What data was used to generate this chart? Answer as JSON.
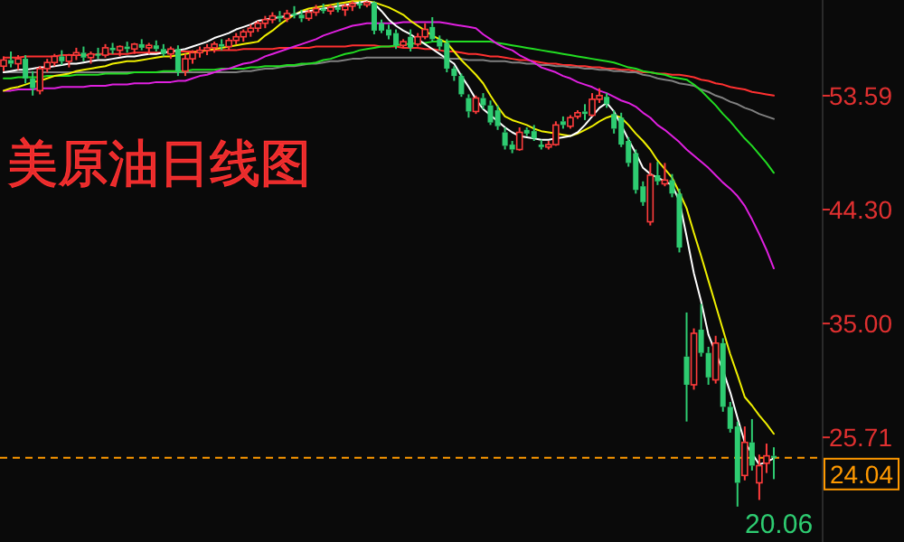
{
  "chart_data": {
    "type": "candlestick",
    "title": "美原油日线图",
    "tick_labels": "y",
    "categories": [
      null,
      null,
      null,
      null,
      null,
      null,
      null,
      null,
      null,
      null,
      null,
      null,
      null,
      null,
      null,
      null,
      null,
      null,
      null,
      null,
      null,
      null,
      null,
      null,
      null,
      null,
      null,
      null,
      null,
      null,
      null,
      null,
      null,
      null,
      null,
      null,
      null,
      null,
      null,
      null,
      null,
      null,
      null,
      null,
      null,
      null,
      null,
      null,
      null,
      null,
      null,
      null,
      null,
      null,
      null,
      null,
      null,
      null,
      null,
      null,
      null,
      null,
      null,
      null,
      null,
      null,
      null,
      null,
      null,
      null,
      null,
      null,
      null,
      null,
      null,
      null,
      null,
      null,
      null,
      null,
      null,
      null,
      null,
      null,
      null,
      null,
      null,
      null,
      null,
      null,
      null,
      null,
      null,
      null,
      null,
      null,
      null,
      null,
      null,
      null,
      null,
      null,
      null,
      null,
      null,
      null,
      null
    ],
    "ohlc": [
      [
        56.0,
        56.8,
        55.6,
        56.5
      ],
      [
        56.5,
        57.2,
        55.9,
        56.2
      ],
      [
        56.2,
        56.9,
        55.7,
        56.6
      ],
      [
        56.6,
        56.9,
        54.6,
        55.0
      ],
      [
        55.0,
        55.6,
        53.6,
        54.2
      ],
      [
        54.0,
        56.0,
        53.7,
        55.8
      ],
      [
        55.8,
        56.6,
        55.5,
        56.3
      ],
      [
        56.3,
        57.0,
        56.0,
        56.8
      ],
      [
        56.8,
        57.3,
        56.1,
        56.4
      ],
      [
        56.4,
        57.0,
        55.9,
        56.9
      ],
      [
        56.9,
        57.5,
        56.5,
        57.1
      ],
      [
        57.1,
        57.6,
        56.4,
        56.7
      ],
      [
        56.7,
        57.2,
        56.2,
        57.0
      ],
      [
        57.0,
        57.5,
        56.6,
        56.9
      ],
      [
        56.9,
        57.8,
        56.7,
        57.5
      ],
      [
        57.5,
        57.9,
        57.0,
        57.3
      ],
      [
        57.3,
        57.7,
        56.8,
        57.6
      ],
      [
        57.6,
        58.0,
        57.1,
        57.4
      ],
      [
        57.4,
        57.9,
        57.0,
        57.8
      ],
      [
        57.8,
        58.2,
        57.3,
        57.5
      ],
      [
        57.5,
        57.9,
        57.0,
        57.7
      ],
      [
        57.7,
        58.1,
        57.2,
        57.4
      ],
      [
        57.4,
        57.8,
        56.8,
        57.0
      ],
      [
        57.0,
        57.6,
        56.6,
        57.4
      ],
      [
        57.4,
        57.7,
        55.2,
        55.6
      ],
      [
        55.6,
        57.0,
        55.2,
        56.6
      ],
      [
        56.6,
        57.3,
        56.2,
        57.1
      ],
      [
        57.1,
        57.6,
        56.7,
        57.3
      ],
      [
        57.3,
        57.8,
        56.9,
        57.5
      ],
      [
        57.5,
        58.0,
        57.1,
        57.8
      ],
      [
        57.8,
        58.2,
        57.3,
        57.6
      ],
      [
        57.6,
        58.3,
        57.3,
        58.1
      ],
      [
        58.1,
        58.7,
        57.8,
        58.4
      ],
      [
        58.4,
        59.0,
        58.0,
        58.8
      ],
      [
        58.8,
        59.4,
        58.4,
        59.1
      ],
      [
        59.1,
        59.7,
        58.8,
        59.5
      ],
      [
        59.5,
        60.1,
        59.1,
        59.8
      ],
      [
        59.8,
        60.4,
        59.5,
        60.1
      ],
      [
        60.1,
        60.5,
        59.6,
        59.9
      ],
      [
        59.9,
        60.6,
        59.6,
        60.3
      ],
      [
        60.3,
        60.9,
        59.9,
        60.2
      ],
      [
        60.2,
        60.6,
        59.6,
        59.9
      ],
      [
        59.9,
        60.6,
        59.7,
        60.4
      ],
      [
        60.4,
        61.0,
        60.1,
        60.7
      ],
      [
        60.7,
        61.1,
        60.3,
        60.5
      ],
      [
        60.5,
        61.0,
        60.2,
        60.8
      ],
      [
        60.8,
        61.2,
        60.4,
        60.6
      ],
      [
        60.6,
        61.1,
        60.1,
        60.9
      ],
      [
        60.9,
        61.3,
        60.5,
        61.1
      ],
      [
        61.1,
        61.3,
        60.7,
        61.0
      ],
      [
        61.0,
        61.3,
        60.8,
        61.2
      ],
      [
        61.2,
        61.3,
        58.6,
        58.9
      ],
      [
        59.5,
        59.8,
        58.7,
        58.9
      ],
      [
        59.0,
        59.4,
        58.2,
        58.5
      ],
      [
        58.7,
        59.0,
        57.4,
        57.7
      ],
      [
        57.7,
        58.2,
        57.5,
        58.0
      ],
      [
        58.4,
        59.0,
        57.2,
        57.5
      ],
      [
        57.8,
        58.7,
        57.6,
        58.4
      ],
      [
        58.4,
        59.5,
        58.2,
        59.0
      ],
      [
        59.2,
        60.0,
        58.0,
        58.2
      ],
      [
        58.2,
        58.5,
        57.3,
        57.6
      ],
      [
        57.9,
        58.2,
        55.5,
        55.8
      ],
      [
        55.8,
        56.0,
        54.8,
        55.2
      ],
      [
        55.2,
        55.4,
        53.5,
        53.7
      ],
      [
        53.4,
        53.7,
        51.8,
        52.3
      ],
      [
        52.3,
        53.6,
        52.1,
        53.4
      ],
      [
        53.4,
        53.8,
        52.5,
        52.8
      ],
      [
        52.8,
        53.2,
        51.2,
        51.4
      ],
      [
        52.4,
        52.8,
        50.8,
        51.1
      ],
      [
        50.6,
        51.0,
        49.2,
        49.5
      ],
      [
        49.6,
        49.9,
        48.9,
        49.2
      ],
      [
        49.2,
        51.0,
        49.1,
        50.6
      ],
      [
        50.8,
        51.0,
        50.3,
        50.5
      ],
      [
        50.7,
        51.2,
        49.9,
        50.1
      ],
      [
        49.6,
        50.0,
        49.2,
        49.4
      ],
      [
        49.4,
        49.9,
        49.2,
        49.6
      ],
      [
        49.6,
        51.5,
        49.5,
        51.2
      ],
      [
        51.5,
        51.9,
        50.9,
        51.2
      ],
      [
        51.1,
        52.0,
        50.9,
        51.8
      ],
      [
        51.9,
        52.4,
        51.7,
        52.2
      ],
      [
        52.3,
        52.9,
        51.6,
        52.1
      ],
      [
        52.0,
        53.8,
        51.9,
        53.3
      ],
      [
        53.3,
        54.2,
        53.0,
        53.6
      ],
      [
        53.5,
        53.8,
        52.6,
        52.9
      ],
      [
        52.1,
        52.4,
        50.5,
        50.9
      ],
      [
        51.8,
        52.2,
        49.4,
        49.6
      ],
      [
        49.9,
        50.2,
        47.8,
        48.1
      ],
      [
        48.9,
        49.2,
        45.6,
        45.9
      ],
      [
        46.2,
        46.6,
        44.6,
        44.9
      ],
      [
        43.3,
        48.1,
        43.0,
        47.1
      ],
      [
        47.1,
        48.2,
        46.3,
        46.6
      ],
      [
        46.4,
        48.1,
        46.2,
        46.7
      ],
      [
        46.7,
        47.2,
        45.3,
        45.6
      ],
      [
        45.6,
        46.0,
        40.8,
        41.2
      ],
      [
        32.3,
        35.9,
        27.0,
        30.0
      ],
      [
        30.0,
        34.6,
        29.6,
        34.2
      ],
      [
        34.5,
        36.6,
        32.3,
        32.6
      ],
      [
        32.6,
        33.1,
        30.0,
        30.6
      ],
      [
        30.4,
        34.0,
        30.1,
        33.4
      ],
      [
        33.4,
        33.8,
        27.8,
        28.2
      ],
      [
        28.2,
        28.6,
        26.1,
        26.4
      ],
      [
        26.6,
        27.0,
        20.06,
        22.0
      ],
      [
        22.6,
        26.6,
        22.2,
        25.3
      ],
      [
        25.3,
        27.2,
        23.0,
        23.4
      ],
      [
        22.0,
        24.3,
        20.6,
        23.4
      ],
      [
        23.6,
        25.2,
        22.8,
        24.2
      ],
      [
        24.2,
        24.9,
        22.3,
        24.04
      ]
    ],
    "series": [
      {
        "type": "line",
        "color": "#ff3030",
        "values": [
          56.7,
          56.7,
          56.7,
          56.8,
          56.8,
          56.8,
          56.8,
          56.8,
          56.9,
          56.9,
          56.9,
          56.9,
          56.9,
          57.0,
          57.0,
          57.0,
          57.0,
          57.0,
          57.1,
          57.1,
          57.1,
          57.1,
          57.1,
          57.2,
          57.2,
          57.2,
          57.2,
          57.2,
          57.3,
          57.3,
          57.3,
          57.3,
          57.3,
          57.4,
          57.4,
          57.4,
          57.4,
          57.4,
          57.5,
          57.5,
          57.5,
          57.5,
          57.5,
          57.6,
          57.6,
          57.6,
          57.6,
          57.6,
          57.7,
          57.7,
          57.7,
          57.7,
          57.6,
          57.6,
          57.6,
          57.5,
          57.5,
          57.5,
          57.4,
          57.4,
          57.3,
          57.2,
          57.2,
          57.1,
          57.0,
          57.0,
          56.9,
          56.8,
          56.8,
          56.7,
          56.6,
          56.5,
          56.5,
          56.4,
          56.3,
          56.2,
          56.2,
          56.1,
          56.1,
          56.0,
          56.0,
          55.9,
          55.9,
          55.8,
          55.8,
          55.7,
          55.7,
          55.6,
          55.5,
          55.5,
          55.4,
          55.4,
          55.3,
          55.3,
          55.2,
          55.1,
          54.9,
          54.8,
          54.6,
          54.5,
          54.3,
          54.2,
          54.1,
          53.9,
          53.8,
          53.7,
          53.6
        ]
      },
      {
        "type": "line",
        "color": "#808080",
        "values": [
          55.5,
          55.5,
          55.5,
          55.5,
          55.5,
          55.5,
          55.5,
          55.5,
          55.5,
          55.5,
          55.5,
          55.5,
          55.5,
          55.5,
          55.5,
          55.5,
          55.5,
          55.5,
          55.5,
          55.5,
          55.5,
          55.5,
          55.5,
          55.5,
          55.5,
          55.5,
          55.5,
          55.5,
          55.5,
          55.5,
          55.5,
          55.5,
          55.5,
          55.6,
          55.6,
          55.7,
          55.8,
          55.8,
          55.9,
          56.0,
          56.0,
          56.1,
          56.2,
          56.2,
          56.3,
          56.4,
          56.4,
          56.5,
          56.6,
          56.6,
          56.7,
          56.7,
          56.7,
          56.7,
          56.7,
          56.7,
          56.7,
          56.7,
          56.7,
          56.7,
          56.7,
          56.6,
          56.6,
          56.6,
          56.5,
          56.5,
          56.5,
          56.4,
          56.4,
          56.4,
          56.3,
          56.3,
          56.2,
          56.2,
          56.1,
          56.1,
          56.0,
          56.0,
          55.9,
          55.9,
          55.8,
          55.8,
          55.7,
          55.7,
          55.6,
          55.6,
          55.5,
          55.5,
          55.3,
          55.2,
          55.0,
          54.9,
          54.8,
          54.6,
          54.5,
          54.4,
          54.1,
          53.9,
          53.6,
          53.4,
          53.1,
          52.9,
          52.6,
          52.4,
          52.1,
          51.9,
          51.7
        ]
      },
      {
        "type": "line",
        "color": "#22dd22",
        "values": [
          55.0,
          55.0,
          55.1,
          55.1,
          55.1,
          55.1,
          55.2,
          55.2,
          55.2,
          55.2,
          55.3,
          55.3,
          55.3,
          55.3,
          55.4,
          55.4,
          55.4,
          55.4,
          55.5,
          55.5,
          55.5,
          55.5,
          55.6,
          55.6,
          55.6,
          55.6,
          55.7,
          55.7,
          55.7,
          55.7,
          55.8,
          55.8,
          55.8,
          55.8,
          55.9,
          55.9,
          56.0,
          56.0,
          56.0,
          56.1,
          56.1,
          56.2,
          56.2,
          56.3,
          56.5,
          56.6,
          56.8,
          57.0,
          57.1,
          57.3,
          57.4,
          57.5,
          57.6,
          57.6,
          57.7,
          57.8,
          57.8,
          57.9,
          57.9,
          58.0,
          58.0,
          58.0,
          58.0,
          58.0,
          58.0,
          58.0,
          58.0,
          58.0,
          57.9,
          57.8,
          57.7,
          57.6,
          57.5,
          57.4,
          57.3,
          57.2,
          57.1,
          57.0,
          56.9,
          56.8,
          56.7,
          56.6,
          56.5,
          56.4,
          56.3,
          56.1,
          55.9,
          55.8,
          55.6,
          55.5,
          55.4,
          55.3,
          55.1,
          55.0,
          54.9,
          54.5,
          54.0,
          53.4,
          52.8,
          52.1,
          51.5,
          50.8,
          50.1,
          49.5,
          48.8,
          48.1,
          47.3
        ]
      },
      {
        "type": "line",
        "color": "#e020e0",
        "values": [
          54.0,
          54.0,
          54.1,
          54.1,
          54.1,
          54.2,
          54.2,
          54.2,
          54.3,
          54.3,
          54.3,
          54.3,
          54.4,
          54.4,
          54.4,
          54.5,
          54.5,
          54.5,
          54.6,
          54.6,
          54.6,
          54.7,
          54.7,
          54.7,
          54.8,
          54.8,
          55.0,
          55.2,
          55.3,
          55.5,
          55.7,
          55.8,
          56.0,
          56.2,
          56.3,
          56.5,
          56.8,
          57.0,
          57.2,
          57.4,
          57.6,
          57.8,
          58.0,
          58.2,
          58.5,
          58.7,
          58.9,
          59.1,
          59.3,
          59.4,
          59.5,
          59.5,
          59.5,
          59.5,
          59.5,
          59.6,
          59.6,
          59.6,
          59.6,
          59.6,
          59.6,
          59.5,
          59.4,
          59.3,
          59.2,
          59.1,
          58.6,
          58.2,
          57.8,
          57.5,
          57.3,
          56.9,
          56.6,
          56.3,
          55.9,
          55.7,
          55.5,
          55.2,
          55.0,
          54.7,
          54.5,
          54.3,
          54.0,
          53.8,
          53.5,
          53.2,
          53.0,
          52.7,
          52.2,
          51.8,
          51.2,
          50.8,
          50.3,
          49.8,
          49.2,
          48.7,
          48.2,
          47.7,
          47.1,
          46.5,
          46.0,
          45.4,
          44.6,
          43.5,
          42.3,
          41.0,
          39.5
        ]
      },
      {
        "type": "line",
        "color": "#f0f000",
        "values": [
          54.0,
          54.2,
          54.3,
          54.5,
          54.7,
          54.8,
          55.0,
          55.2,
          55.3,
          55.4,
          55.6,
          55.7,
          55.8,
          55.9,
          56.0,
          56.2,
          56.3,
          56.4,
          56.4,
          56.5,
          56.6,
          56.7,
          56.8,
          56.8,
          56.9,
          57.0,
          57.1,
          57.2,
          57.3,
          57.4,
          57.5,
          57.6,
          57.7,
          57.8,
          57.9,
          58.0,
          58.5,
          58.9,
          59.4,
          59.8,
          60.2,
          60.5,
          60.7,
          60.8,
          60.9,
          61.0,
          61.1,
          61.2,
          61.3,
          61.3,
          61.3,
          61.2,
          61.0,
          60.8,
          60.5,
          60.2,
          59.7,
          59.3,
          58.9,
          58.5,
          58.2,
          57.9,
          57.2,
          56.5,
          55.9,
          55.3,
          54.6,
          53.6,
          52.7,
          51.9,
          51.6,
          51.4,
          51.2,
          50.9,
          50.7,
          50.6,
          50.5,
          50.4,
          50.3,
          50.5,
          50.8,
          51.1,
          51.5,
          51.8,
          52.0,
          51.8,
          51.2,
          50.5,
          49.9,
          49.2,
          48.3,
          47.6,
          46.9,
          45.7,
          44.4,
          42.4,
          40.5,
          38.5,
          36.5,
          34.5,
          32.5,
          30.8,
          29.0,
          28.3,
          27.5,
          26.8,
          26.0
        ]
      },
      {
        "type": "line",
        "color": "#ffffff",
        "values": [
          55.5,
          55.6,
          55.7,
          55.7,
          55.8,
          55.9,
          55.9,
          56.0,
          56.1,
          56.2,
          56.2,
          56.3,
          56.4,
          56.5,
          56.5,
          56.6,
          56.7,
          56.8,
          56.8,
          56.9,
          57.0,
          57.0,
          57.1,
          57.2,
          57.3,
          57.4,
          57.6,
          57.8,
          58.0,
          58.3,
          58.5,
          58.7,
          59.0,
          59.2,
          59.4,
          59.7,
          59.8,
          59.9,
          60.0,
          60.1,
          60.2,
          60.4,
          60.5,
          60.6,
          60.7,
          60.8,
          60.9,
          61.0,
          61.1,
          61.2,
          61.3,
          61.1,
          60.5,
          59.8,
          59.3,
          58.9,
          58.6,
          58.2,
          57.8,
          57.4,
          57.0,
          56.6,
          56.2,
          55.2,
          54.3,
          53.3,
          52.5,
          52.0,
          51.5,
          51.0,
          50.6,
          50.3,
          50.2,
          50.1,
          50.0,
          50.0,
          50.1,
          50.2,
          50.3,
          50.6,
          51.2,
          51.9,
          52.6,
          53.0,
          52.3,
          51.2,
          50.0,
          48.9,
          47.7,
          47.2,
          46.9,
          46.6,
          46.3,
          45.0,
          42.1,
          39.1,
          36.8,
          34.1,
          32.6,
          31.2,
          29.4,
          27.3,
          25.3,
          24.4,
          23.5,
          23.7,
          24.0
        ]
      }
    ],
    "ylim": [
      17.17,
      61.4
    ],
    "yticks": [
      53.59,
      {
        "value": 44.3,
        "label": "44.30"
      },
      {
        "value": 35,
        "label": "35.00"
      },
      25.71
    ],
    "ref_lines": [
      {
        "axis": "y",
        "value": 24.04,
        "label": "24.04",
        "color": "#ff9900",
        "line_style": "dashed"
      }
    ],
    "annotations": [
      "20.06"
    ]
  }
}
